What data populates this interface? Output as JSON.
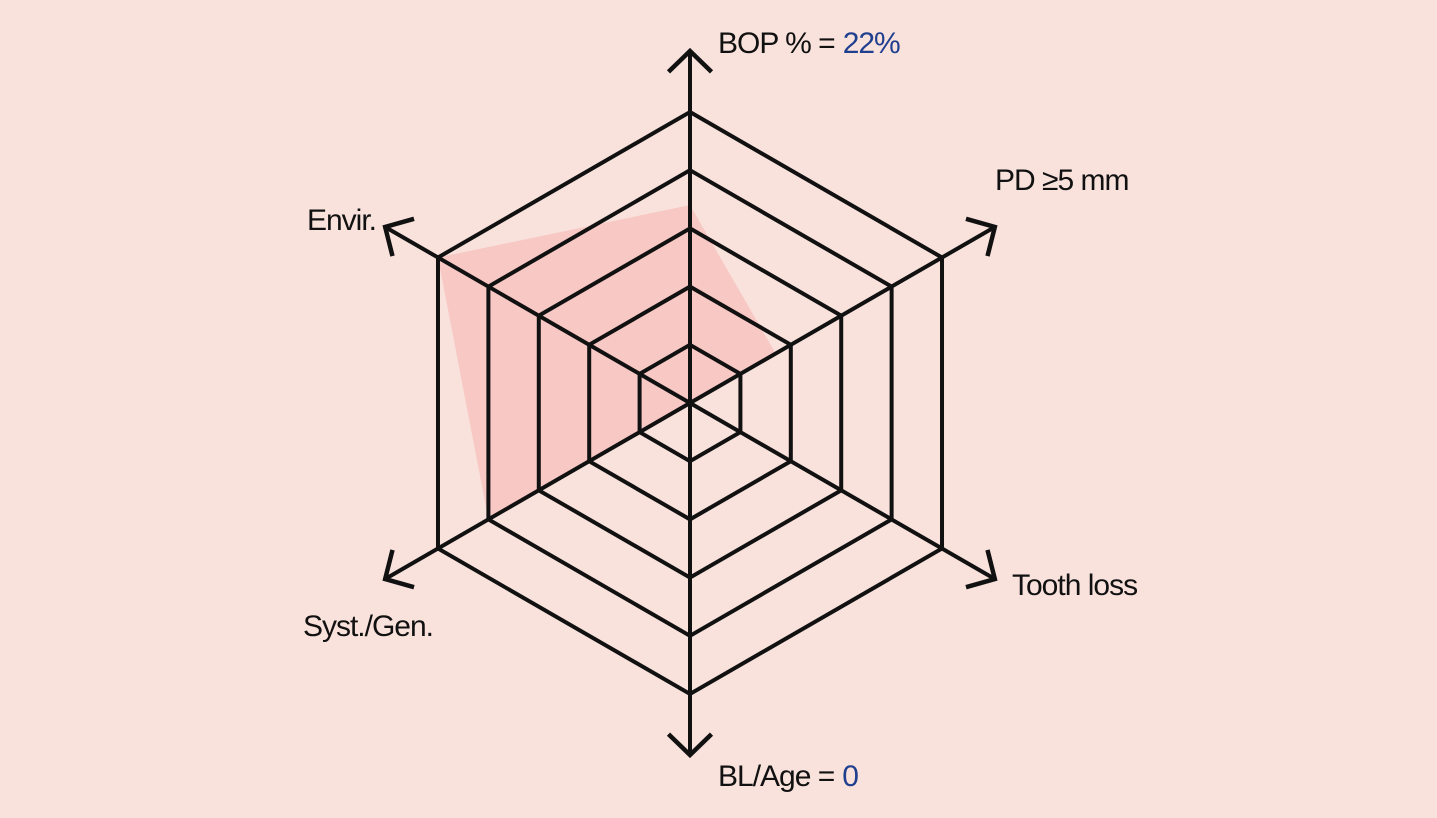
{
  "chart_data": {
    "type": "radar",
    "categories": [
      "BOP % =",
      "PD ≥5 mm",
      "Tooth loss",
      "BL/Age =",
      "Syst./Gen.",
      "Envir."
    ],
    "values": [
      3.4,
      1.7,
      0,
      0,
      4,
      5
    ],
    "color": "#f7c3bf",
    "rlim": [
      0,
      5
    ],
    "rticks": [
      1,
      2,
      3,
      4,
      5
    ],
    "annotations": [
      {
        "axis": 0,
        "text": "22%",
        "color": "#1f3f8f"
      },
      {
        "axis": 3,
        "text": "0",
        "color": "#1f3f8f"
      }
    ]
  }
}
